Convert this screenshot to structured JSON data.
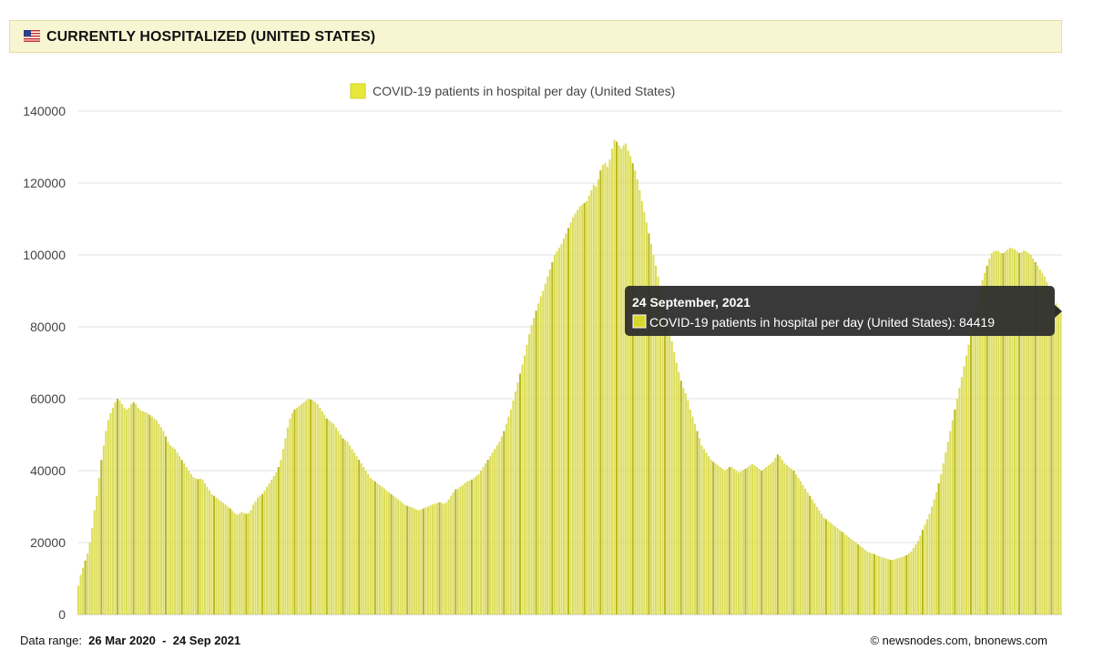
{
  "header": {
    "title": "CURRENTLY HOSPITALIZED (UNITED STATES)",
    "flag_icon": "us-flag-icon"
  },
  "chart_data": {
    "type": "bar",
    "title": "",
    "xlabel": "",
    "ylabel": "",
    "ylim": [
      0,
      140000
    ],
    "yticks": [
      "0",
      "20000",
      "40000",
      "60000",
      "80000",
      "100000",
      "120000",
      "140000"
    ],
    "grid": true,
    "legend_position": "top-center",
    "series": [
      {
        "name": "COVID-19 patients in hospital per day (United States)",
        "color": "#dddd5a",
        "x_start": "2020-03-26",
        "x_end": "2021-09-24",
        "values": [
          8000,
          11000,
          13000,
          15000,
          17000,
          20000,
          24000,
          29000,
          33000,
          38000,
          43000,
          47000,
          51000,
          54000,
          56000,
          57500,
          59000,
          60000,
          59500,
          58500,
          57500,
          57000,
          57500,
          58500,
          59000,
          58500,
          57500,
          56800,
          56500,
          56300,
          56000,
          55500,
          55000,
          54500,
          54000,
          53000,
          52000,
          51000,
          49500,
          48000,
          47000,
          46500,
          46000,
          45000,
          44000,
          43000,
          42000,
          41000,
          40000,
          39000,
          38200,
          37800,
          37600,
          37800,
          37500,
          36500,
          35500,
          34500,
          33500,
          33000,
          32500,
          32000,
          31500,
          31000,
          30500,
          30000,
          29500,
          28800,
          28200,
          27800,
          28000,
          28500,
          28200,
          28000,
          28200,
          29000,
          30500,
          31500,
          32500,
          33000,
          33500,
          34500,
          35500,
          36500,
          37500,
          38500,
          39500,
          41000,
          43000,
          46000,
          49000,
          52000,
          54500,
          56000,
          57000,
          57500,
          58000,
          58500,
          59000,
          59500,
          60000,
          59800,
          59500,
          59000,
          58500,
          57500,
          56500,
          55500,
          54500,
          54000,
          53500,
          53000,
          52000,
          51000,
          50000,
          49000,
          48500,
          48000,
          47000,
          46000,
          45000,
          44000,
          43000,
          42000,
          41000,
          40000,
          39000,
          38000,
          37500,
          37000,
          36500,
          36000,
          35500,
          35000,
          34500,
          34000,
          33500,
          33000,
          32500,
          32000,
          31500,
          31000,
          30500,
          30200,
          30000,
          29800,
          29500,
          29200,
          29000,
          29200,
          29500,
          29800,
          30000,
          30300,
          30600,
          30800,
          31000,
          31200,
          31000,
          30800,
          31200,
          32000,
          33000,
          34000,
          34800,
          35000,
          35500,
          36000,
          36500,
          37000,
          37200,
          37500,
          38000,
          38500,
          39000,
          40000,
          41000,
          42000,
          43000,
          44000,
          45000,
          46000,
          47000,
          48000,
          49500,
          51000,
          53000,
          55000,
          57000,
          59500,
          62000,
          64500,
          67000,
          69500,
          72000,
          75000,
          78000,
          80500,
          82500,
          84500,
          86500,
          88500,
          90000,
          92000,
          94000,
          96000,
          98000,
          100000,
          101000,
          102000,
          103000,
          104500,
          106000,
          107500,
          109000,
          110500,
          111500,
          112500,
          113500,
          114000,
          114500,
          115000,
          116500,
          118000,
          119500,
          119000,
          121000,
          123500,
          125000,
          125500,
          124500,
          126500,
          129500,
          132000,
          131500,
          130500,
          129500,
          130500,
          131000,
          129000,
          127500,
          125500,
          123500,
          121000,
          118000,
          115000,
          112000,
          109000,
          106000,
          103000,
          100000,
          97000,
          94000,
          91000,
          88000,
          85000,
          82000,
          79000,
          76000,
          73000,
          70000,
          67500,
          65000,
          63000,
          61500,
          59500,
          57000,
          55000,
          53000,
          51000,
          49000,
          47000,
          46000,
          45000,
          44000,
          43000,
          42500,
          42000,
          41500,
          41000,
          40500,
          40000,
          40500,
          41000,
          41000,
          40500,
          40000,
          39500,
          39800,
          40200,
          40500,
          41000,
          41500,
          41800,
          41500,
          41000,
          40500,
          40000,
          40500,
          41000,
          41500,
          42000,
          42500,
          43500,
          44500,
          44000,
          43000,
          42000,
          41500,
          41000,
          40500,
          40000,
          39000,
          38000,
          37000,
          36000,
          35000,
          34000,
          33000,
          32000,
          31000,
          30000,
          29000,
          28000,
          27000,
          26500,
          26000,
          25500,
          25000,
          24500,
          24000,
          23500,
          23000,
          22500,
          22000,
          21500,
          21000,
          20500,
          20000,
          19500,
          19000,
          18500,
          18000,
          17500,
          17200,
          17000,
          16800,
          16500,
          16200,
          16000,
          15800,
          15600,
          15400,
          15200,
          15200,
          15400,
          15600,
          15800,
          16000,
          16200,
          16500,
          17000,
          17500,
          18500,
          19500,
          20500,
          22000,
          23500,
          25000,
          26500,
          28000,
          30000,
          32000,
          34000,
          36500,
          39000,
          42000,
          45000,
          48000,
          51000,
          54000,
          57000,
          60000,
          63000,
          66000,
          69000,
          72000,
          75000,
          78000,
          81000,
          84000,
          87000,
          90000,
          93000,
          95000,
          97000,
          99000,
          100500,
          101000,
          101200,
          101000,
          100500,
          100500,
          101000,
          101500,
          102000,
          101800,
          101500,
          101000,
          100500,
          100800,
          101200,
          101000,
          100500,
          100000,
          99000,
          98000,
          97000,
          96000,
          95000,
          94000,
          92500,
          91000,
          89500,
          88000,
          86500,
          85500,
          84419
        ]
      }
    ],
    "tooltip": {
      "date": "24 September, 2021",
      "text": "COVID-19 patients in hospital per day (United States): 84419"
    }
  },
  "footer": {
    "range_label": "Data range:",
    "range_start": "26 Mar 2020",
    "range_sep": "-",
    "range_end": "24 Sep 2021",
    "credits": "©  newsnodes.com, bnonews.com"
  }
}
